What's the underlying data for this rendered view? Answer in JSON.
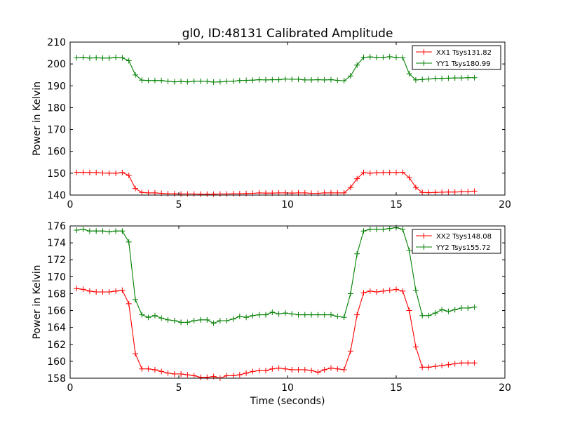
{
  "figure_title": "gl0, ID:48131 Calibrated Amplitude",
  "chart_data": [
    {
      "type": "line",
      "title": "gl0, ID:48131 Calibrated Amplitude",
      "xlabel": "",
      "ylabel": "Power in Kelvin",
      "xlim": [
        0,
        20
      ],
      "ylim": [
        140,
        210
      ],
      "xticks": [
        0,
        5,
        10,
        15,
        20
      ],
      "yticks": [
        140,
        150,
        160,
        170,
        180,
        190,
        200,
        210
      ],
      "grid": false,
      "legend_position": "upper right",
      "x": [
        0.3,
        0.6,
        0.9,
        1.2,
        1.5,
        1.8,
        2.1,
        2.4,
        2.7,
        3.0,
        3.3,
        3.6,
        3.9,
        4.2,
        4.5,
        4.8,
        5.1,
        5.4,
        5.7,
        6.0,
        6.3,
        6.6,
        6.9,
        7.2,
        7.5,
        7.8,
        8.1,
        8.4,
        8.7,
        9.0,
        9.3,
        9.6,
        9.9,
        10.2,
        10.5,
        10.8,
        11.1,
        11.4,
        11.7,
        12.0,
        12.3,
        12.6,
        12.9,
        13.2,
        13.5,
        13.8,
        14.1,
        14.4,
        14.7,
        15.0,
        15.3,
        15.6,
        15.9,
        16.2,
        16.5,
        16.8,
        17.1,
        17.4,
        17.7,
        18.0,
        18.3,
        18.6
      ],
      "series": [
        {
          "name": "XX1 Tsys131.82",
          "color": "#ff0000",
          "values": [
            150.4,
            150.4,
            150.3,
            150.3,
            150.1,
            150.0,
            150.0,
            150.3,
            149.0,
            143.0,
            141.2,
            141.0,
            141.0,
            140.8,
            140.6,
            140.6,
            140.5,
            140.5,
            140.5,
            140.4,
            140.4,
            140.4,
            140.5,
            140.5,
            140.6,
            140.6,
            140.7,
            140.8,
            141.0,
            140.9,
            140.9,
            141.0,
            141.0,
            140.9,
            141.0,
            141.0,
            140.8,
            140.8,
            141.0,
            141.0,
            141.0,
            141.0,
            143.5,
            147.5,
            150.3,
            150.0,
            150.2,
            150.3,
            150.3,
            150.3,
            150.4,
            148.0,
            143.5,
            141.2,
            141.1,
            141.2,
            141.3,
            141.4,
            141.4,
            141.5,
            141.6,
            141.8
          ]
        },
        {
          "name": "YY1 Tsys180.99",
          "color": "#008000",
          "values": [
            202.8,
            203.0,
            202.7,
            202.8,
            202.7,
            202.7,
            203.0,
            202.8,
            201.5,
            195.0,
            192.6,
            192.4,
            192.4,
            192.4,
            192.1,
            191.8,
            192.0,
            191.8,
            192.1,
            192.1,
            192.0,
            191.7,
            191.8,
            192.0,
            192.1,
            192.4,
            192.5,
            192.6,
            192.8,
            192.7,
            192.8,
            192.8,
            193.1,
            193.0,
            193.0,
            192.7,
            192.7,
            192.8,
            192.7,
            192.8,
            192.5,
            192.3,
            194.5,
            199.5,
            203.0,
            203.2,
            203.0,
            203.0,
            203.3,
            203.0,
            202.9,
            195.5,
            192.7,
            192.9,
            193.1,
            193.4,
            193.4,
            193.5,
            193.6,
            193.6,
            193.7,
            193.7
          ]
        }
      ]
    },
    {
      "type": "line",
      "title": "",
      "xlabel": "Time (seconds)",
      "ylabel": "Power in Kelvin",
      "xlim": [
        0,
        20
      ],
      "ylim": [
        158,
        176
      ],
      "xticks": [
        0,
        5,
        10,
        15,
        20
      ],
      "yticks": [
        158,
        160,
        162,
        164,
        166,
        168,
        170,
        172,
        174,
        176
      ],
      "grid": false,
      "legend_position": "upper right",
      "x": [
        0.3,
        0.6,
        0.9,
        1.2,
        1.5,
        1.8,
        2.1,
        2.4,
        2.7,
        3.0,
        3.3,
        3.6,
        3.9,
        4.2,
        4.5,
        4.8,
        5.1,
        5.4,
        5.7,
        6.0,
        6.3,
        6.6,
        6.9,
        7.2,
        7.5,
        7.8,
        8.1,
        8.4,
        8.7,
        9.0,
        9.3,
        9.6,
        9.9,
        10.2,
        10.5,
        10.8,
        11.1,
        11.4,
        11.7,
        12.0,
        12.3,
        12.6,
        12.9,
        13.2,
        13.5,
        13.8,
        14.1,
        14.4,
        14.7,
        15.0,
        15.3,
        15.6,
        15.9,
        16.2,
        16.5,
        16.8,
        17.1,
        17.4,
        17.7,
        18.0,
        18.3,
        18.6
      ],
      "series": [
        {
          "name": "XX2 Tsys148.08",
          "color": "#ff0000",
          "values": [
            168.6,
            168.5,
            168.3,
            168.2,
            168.2,
            168.2,
            168.3,
            168.4,
            166.8,
            160.9,
            159.1,
            159.1,
            159.0,
            158.8,
            158.6,
            158.5,
            158.5,
            158.4,
            158.3,
            158.1,
            158.1,
            158.2,
            158.0,
            158.3,
            158.3,
            158.4,
            158.6,
            158.8,
            158.9,
            158.9,
            159.1,
            159.2,
            159.1,
            159.0,
            159.0,
            159.0,
            158.9,
            158.7,
            159.0,
            159.2,
            159.1,
            159.0,
            161.2,
            165.5,
            168.1,
            168.3,
            168.2,
            168.3,
            168.4,
            168.5,
            168.3,
            166.0,
            161.7,
            159.3,
            159.3,
            159.4,
            159.5,
            159.6,
            159.7,
            159.8,
            159.8,
            159.8
          ]
        },
        {
          "name": "YY2 Tsys155.72",
          "color": "#008000",
          "values": [
            175.5,
            175.6,
            175.4,
            175.4,
            175.4,
            175.3,
            175.4,
            175.4,
            174.1,
            167.3,
            165.5,
            165.2,
            165.4,
            165.1,
            164.9,
            164.8,
            164.6,
            164.6,
            164.8,
            164.9,
            164.9,
            164.5,
            164.8,
            164.8,
            165.0,
            165.3,
            165.2,
            165.4,
            165.5,
            165.5,
            165.8,
            165.6,
            165.7,
            165.6,
            165.5,
            165.5,
            165.5,
            165.5,
            165.5,
            165.5,
            165.3,
            165.2,
            168.0,
            172.7,
            175.4,
            175.6,
            175.6,
            175.6,
            175.7,
            175.8,
            175.6,
            173.1,
            168.4,
            165.4,
            165.4,
            165.7,
            166.1,
            165.9,
            166.1,
            166.3,
            166.3,
            166.4
          ]
        }
      ]
    }
  ]
}
